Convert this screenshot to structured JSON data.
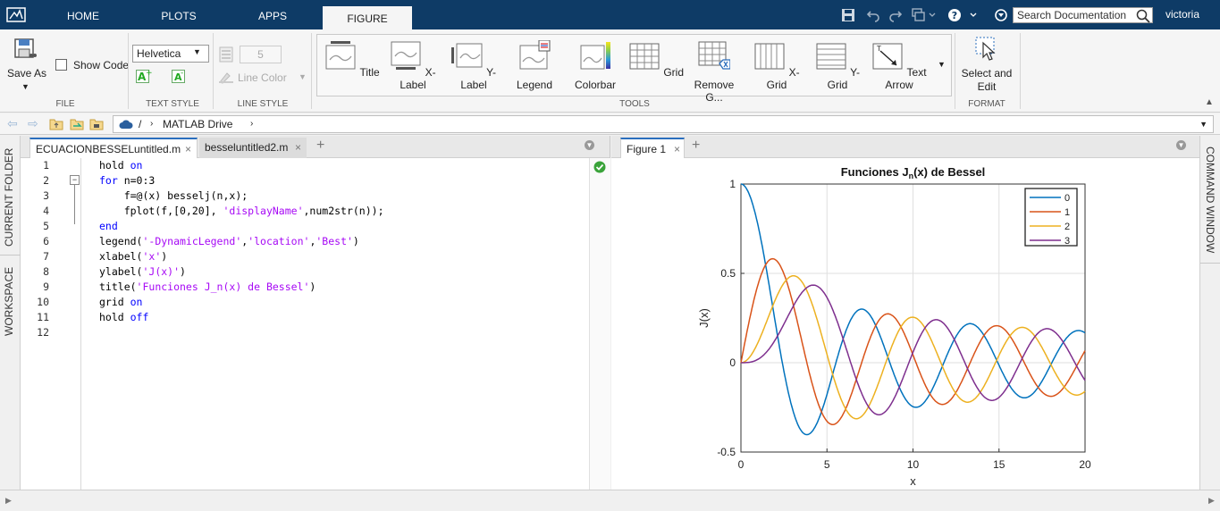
{
  "topbar": {
    "tabs": [
      {
        "label": "HOME"
      },
      {
        "label": "PLOTS"
      },
      {
        "label": "APPS"
      },
      {
        "label": "FIGURE"
      }
    ],
    "search_placeholder": "Search Documentation",
    "user": "victoria"
  },
  "toolstrip": {
    "file": {
      "save_as": "Save As",
      "show_code": "Show Code",
      "section": "FILE"
    },
    "text_style": {
      "font": "Helvetica",
      "section": "TEXT STYLE"
    },
    "line_style": {
      "width": "5",
      "line_color": "Line Color",
      "section": "LINE STYLE"
    },
    "tools": {
      "section": "TOOLS",
      "items": [
        {
          "label": "Title",
          "icon": "title-icon"
        },
        {
          "label": "X-Label",
          "icon": "x-label-icon"
        },
        {
          "label": "Y-Label",
          "icon": "y-label-icon"
        },
        {
          "label": "Legend",
          "icon": "legend-icon"
        },
        {
          "label": "Colorbar",
          "icon": "colorbar-icon"
        },
        {
          "label": "Grid",
          "icon": "grid-icon"
        },
        {
          "label": "Remove G...",
          "icon": "remove-grid-icon"
        },
        {
          "label": "X-Grid",
          "icon": "x-grid-icon"
        },
        {
          "label": "Y-Grid",
          "icon": "y-grid-icon"
        },
        {
          "label": "Text Arrow",
          "icon": "text-arrow-icon"
        }
      ]
    },
    "format": {
      "select_line1": "Select and",
      "select_line2": "Edit",
      "section": "FORMAT"
    }
  },
  "address": {
    "sep": "/",
    "path": "MATLAB Drive"
  },
  "sidebar": {
    "current_folder": "CURRENT FOLDER",
    "workspace": "WORKSPACE",
    "command_window": "COMMAND WINDOW"
  },
  "editor": {
    "tabs": [
      {
        "label": "ECUACIONBESSELuntitled.m"
      },
      {
        "label": "besseluntitled2.m"
      }
    ],
    "lines": [
      {
        "n": "1",
        "segs": [
          [
            "",
            "hold "
          ],
          [
            "kw",
            "on"
          ]
        ]
      },
      {
        "n": "2",
        "segs": [
          [
            "kw",
            "for "
          ],
          [
            "",
            "n=0:3"
          ]
        ]
      },
      {
        "n": "3",
        "segs": [
          [
            "",
            "    f=@(x) besselj(n,x);"
          ]
        ]
      },
      {
        "n": "4",
        "segs": [
          [
            "",
            "    fplot(f,[0,20], "
          ],
          [
            "str",
            "'displayName'"
          ],
          [
            "",
            ",num2str(n));"
          ]
        ]
      },
      {
        "n": "5",
        "segs": [
          [
            "kw",
            "end"
          ]
        ]
      },
      {
        "n": "6",
        "segs": [
          [
            "",
            "legend("
          ],
          [
            "str",
            "'-DynamicLegend'"
          ],
          [
            "",
            ","
          ],
          [
            "str",
            "'location'"
          ],
          [
            "",
            ","
          ],
          [
            "str",
            "'Best'"
          ],
          [
            "",
            ")"
          ]
        ]
      },
      {
        "n": "7",
        "segs": [
          [
            "",
            "xlabel("
          ],
          [
            "str",
            "'x'"
          ],
          [
            "",
            ")"
          ]
        ]
      },
      {
        "n": "8",
        "segs": [
          [
            "",
            "ylabel("
          ],
          [
            "str",
            "'J(x)'"
          ],
          [
            "",
            ")"
          ]
        ]
      },
      {
        "n": "9",
        "segs": [
          [
            "",
            "title("
          ],
          [
            "str",
            "'Funciones J_n(x) de Bessel'"
          ],
          [
            "",
            ")"
          ]
        ]
      },
      {
        "n": "10",
        "segs": [
          [
            "",
            "grid "
          ],
          [
            "kw",
            "on"
          ]
        ]
      },
      {
        "n": "11",
        "segs": [
          [
            "",
            "hold "
          ],
          [
            "kw",
            "off"
          ]
        ]
      },
      {
        "n": "12",
        "segs": []
      }
    ]
  },
  "figure": {
    "tab": "Figure 1"
  },
  "chart_data": {
    "type": "line",
    "title": "Funciones J",
    "title_sub": "n",
    "title_rest": "(x)  de  Bessel",
    "xlabel": "x",
    "ylabel": "J(x)",
    "xlim": [
      0,
      20
    ],
    "ylim": [
      -0.5,
      1
    ],
    "xticks": [
      "0",
      "5",
      "10",
      "15",
      "20"
    ],
    "yticks": [
      "-0.5",
      "0",
      "0.5",
      "1"
    ],
    "grid": true,
    "legend_position": "top-right",
    "series": [
      {
        "name": "0",
        "order": 0,
        "color": "#0072bd"
      },
      {
        "name": "1",
        "order": 1,
        "color": "#d95319"
      },
      {
        "name": "2",
        "order": 2,
        "color": "#edb120"
      },
      {
        "name": "3",
        "order": 3,
        "color": "#7e2f8e"
      }
    ]
  }
}
